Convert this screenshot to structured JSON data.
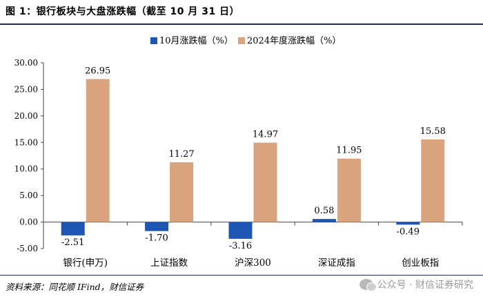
{
  "figure_title": "图 1：银行板块与大盘涨跌幅（截至 10 月 31 日）",
  "source_note": "资料来源：同花顺 IFind，财信证券",
  "watermark": "公众号 · 财信证券研究",
  "colors": {
    "series_oct": "#1f56b4",
    "series_ytd": "#d9a47e",
    "rule": "#1f2d5a"
  },
  "chart_data": {
    "type": "bar",
    "categories": [
      "银行(申万)",
      "上证指数",
      "沪深300",
      "深证成指",
      "创业板指"
    ],
    "series": [
      {
        "name": "10月涨跌幅（%）",
        "values": [
          -2.51,
          -1.7,
          -3.16,
          0.58,
          -0.49
        ],
        "labels": [
          "-2.51",
          "-1.70",
          "-3.16",
          "0.58",
          "-0.49"
        ]
      },
      {
        "name": "2024年度涨跌幅（%）",
        "values": [
          26.95,
          11.27,
          14.97,
          11.95,
          15.58
        ],
        "labels": [
          "26.95",
          "11.27",
          "14.97",
          "11.95",
          "15.58"
        ]
      }
    ],
    "ylim": [
      -5,
      30
    ],
    "yticks": [
      -5,
      0,
      5,
      10,
      15,
      20,
      25,
      30
    ],
    "ytick_labels": [
      "-5.00",
      "0.00",
      "5.00",
      "10.00",
      "15.00",
      "20.00",
      "25.00",
      "30.00"
    ],
    "title": "",
    "xlabel": "",
    "ylabel": "",
    "legend_position": "top-center",
    "grid": false
  }
}
